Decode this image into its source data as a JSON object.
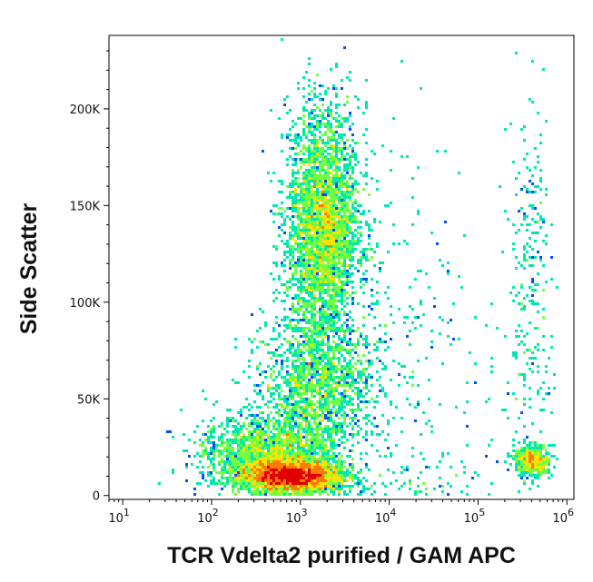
{
  "chart_data": {
    "type": "density-scatter",
    "xlabel": "TCR Vdelta2 purified / GAM APC",
    "ylabel": "Side Scatter",
    "x_scale": "log",
    "xlim": [
      7,
      1200000
    ],
    "ylim": [
      -2000,
      238000
    ],
    "x_ticks": [
      {
        "value": 10,
        "base": "10",
        "exp": "1"
      },
      {
        "value": 100,
        "base": "10",
        "exp": "2"
      },
      {
        "value": 1000,
        "base": "10",
        "exp": "3"
      },
      {
        "value": 10000,
        "base": "10",
        "exp": "4"
      },
      {
        "value": 100000,
        "base": "10",
        "exp": "5"
      },
      {
        "value": 1000000,
        "base": "10",
        "exp": "6"
      }
    ],
    "y_ticks": [
      {
        "value": 0,
        "label": "0"
      },
      {
        "value": 50000,
        "label": "50K"
      },
      {
        "value": 100000,
        "label": "100K"
      },
      {
        "value": 150000,
        "label": "150K"
      },
      {
        "value": 200000,
        "label": "200K"
      }
    ],
    "populations": [
      {
        "center_x": 800,
        "center_y": 10000,
        "spread_log_x": 0.28,
        "spread_y": 4000,
        "weight": 0.3
      },
      {
        "center_x": 400,
        "center_y": 22000,
        "spread_log_x": 0.35,
        "spread_y": 9000,
        "weight": 0.14
      },
      {
        "center_x": 1800,
        "center_y": 140000,
        "spread_log_x": 0.2,
        "spread_y": 30000,
        "weight": 0.3
      },
      {
        "center_x": 1500,
        "center_y": 55000,
        "spread_log_x": 0.3,
        "spread_y": 18000,
        "weight": 0.14
      },
      {
        "center_x": 400000,
        "center_y": 18000,
        "spread_log_x": 0.1,
        "spread_y": 4000,
        "weight": 0.04
      },
      {
        "center_x": 8000,
        "center_y": 60000,
        "spread_log_x": 0.7,
        "spread_y": 60000,
        "weight": 0.04
      },
      {
        "center_x": 400000,
        "center_y": 110000,
        "spread_log_x": 0.12,
        "spread_y": 50000,
        "weight": 0.02
      }
    ],
    "colors": [
      "#0000cc",
      "#0050ff",
      "#00b4ff",
      "#00e8b0",
      "#70ff40",
      "#ffe000",
      "#ff7a00",
      "#e00000"
    ]
  }
}
